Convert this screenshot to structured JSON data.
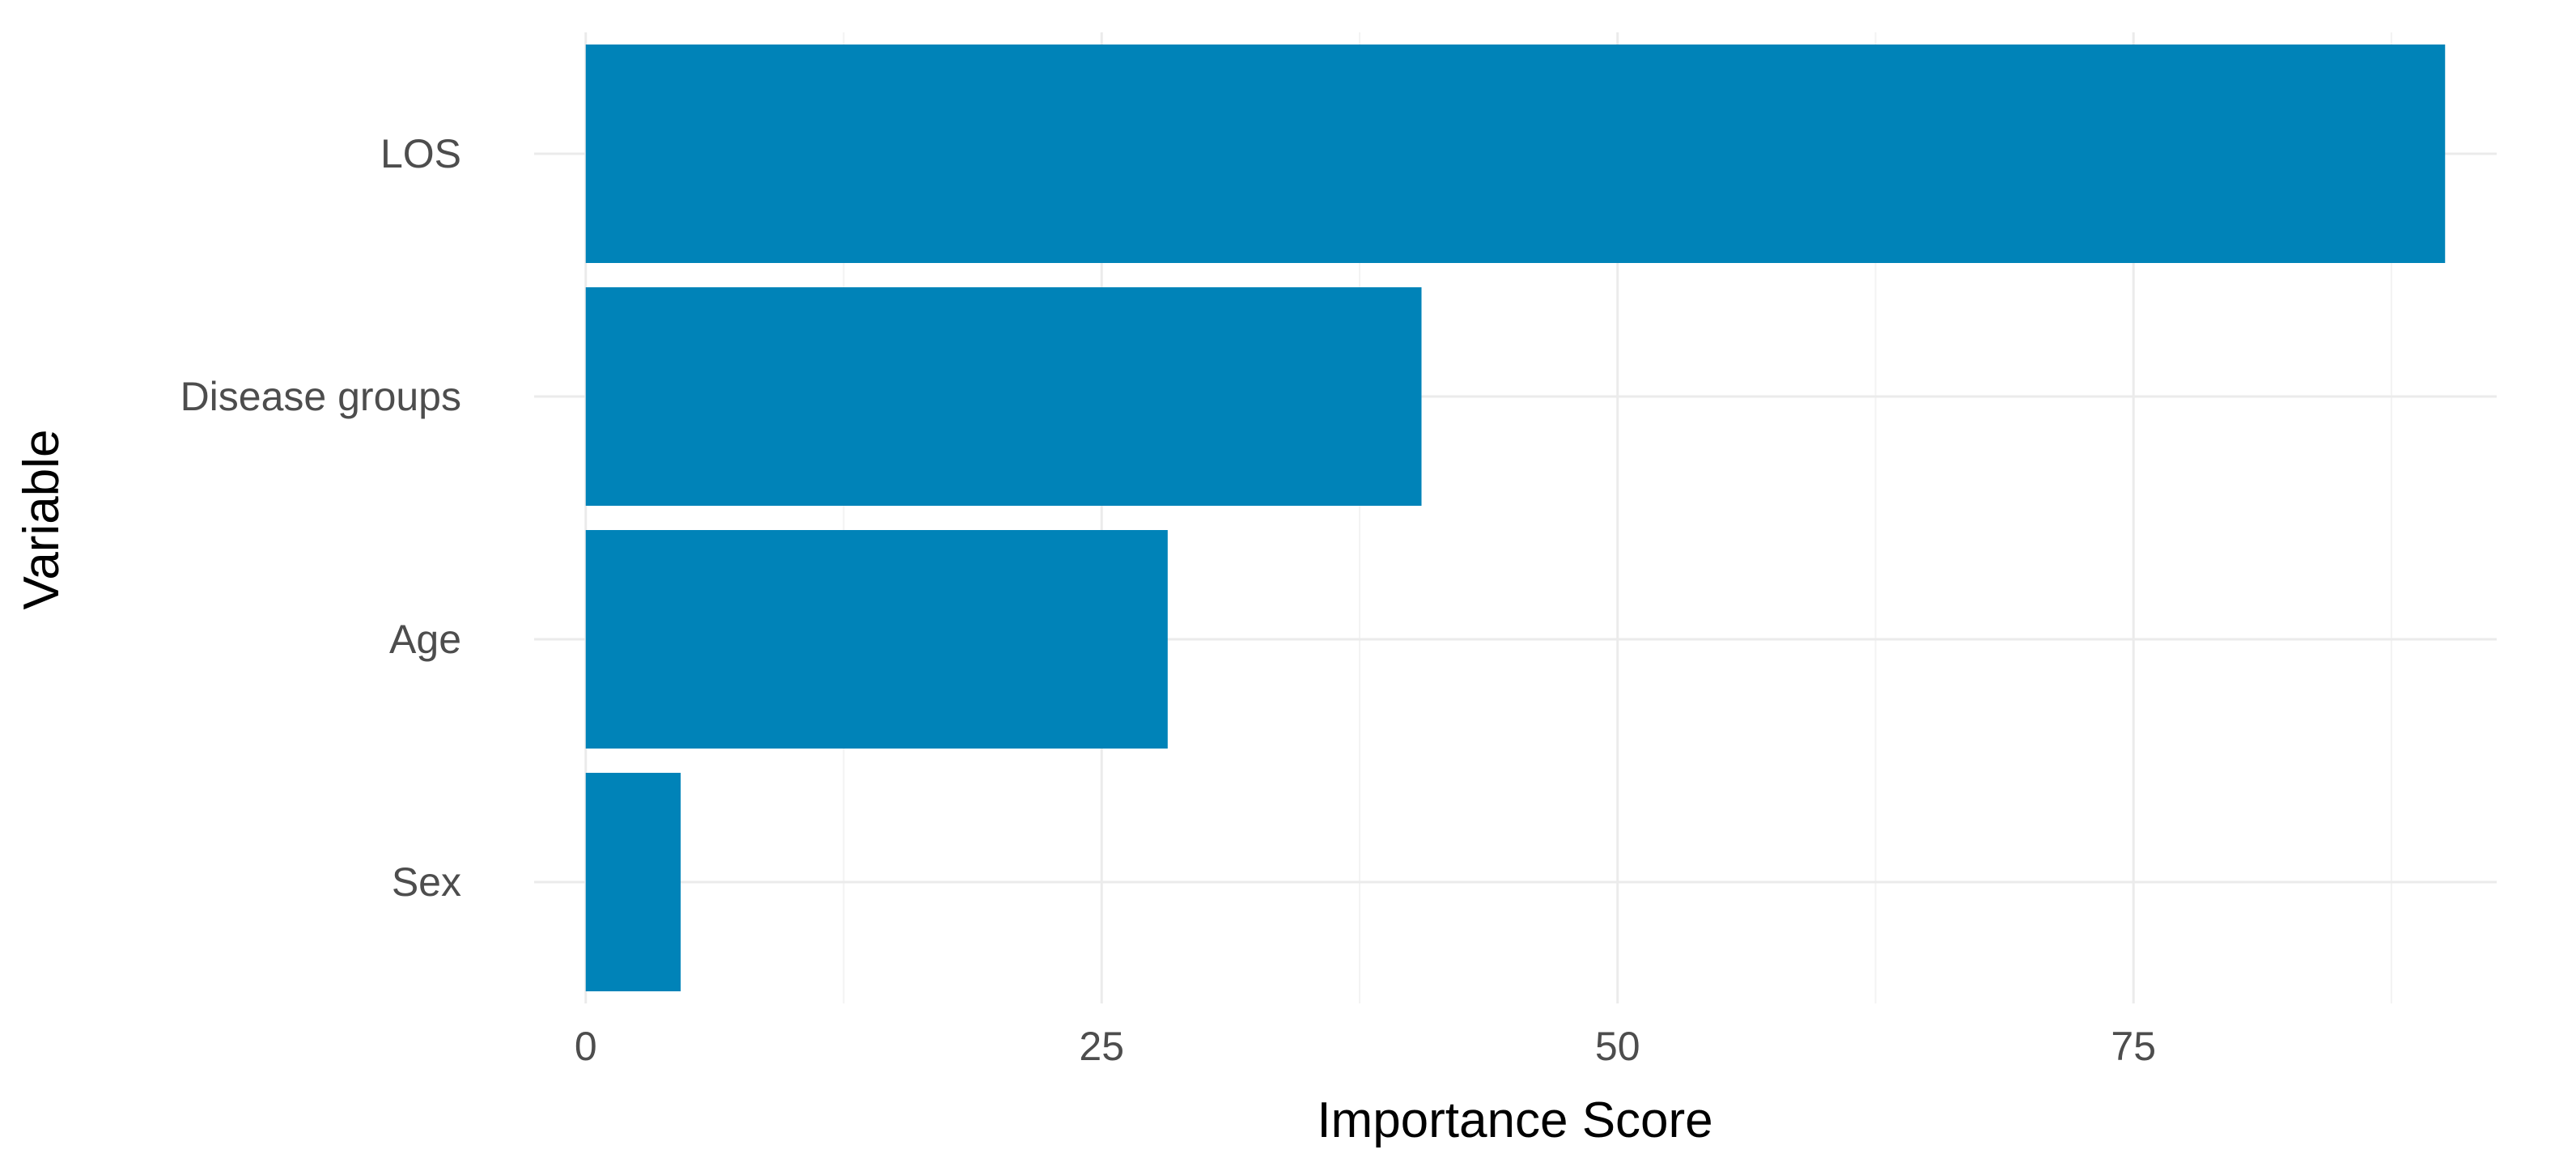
{
  "chart_data": {
    "type": "bar",
    "orientation": "horizontal",
    "title": "",
    "xlabel": "Importance Score",
    "ylabel": "Variable",
    "categories": [
      "LOS",
      "Disease groups",
      "Age",
      "Sex"
    ],
    "values": [
      90.1,
      40.5,
      28.2,
      4.6
    ],
    "xlim": [
      -2.5,
      92.6
    ],
    "x_ticks": [
      0,
      25,
      50,
      75
    ],
    "x_tick_labels": [
      "0",
      "25",
      "50",
      "75"
    ],
    "grid": true,
    "legend": "none",
    "colors": {
      "bar": "#0083b8",
      "grid_major": "#ebebeb",
      "grid_minor": "#f3f3f3",
      "tick_text": "#4d4d4d",
      "axis_title": "#000000"
    }
  }
}
